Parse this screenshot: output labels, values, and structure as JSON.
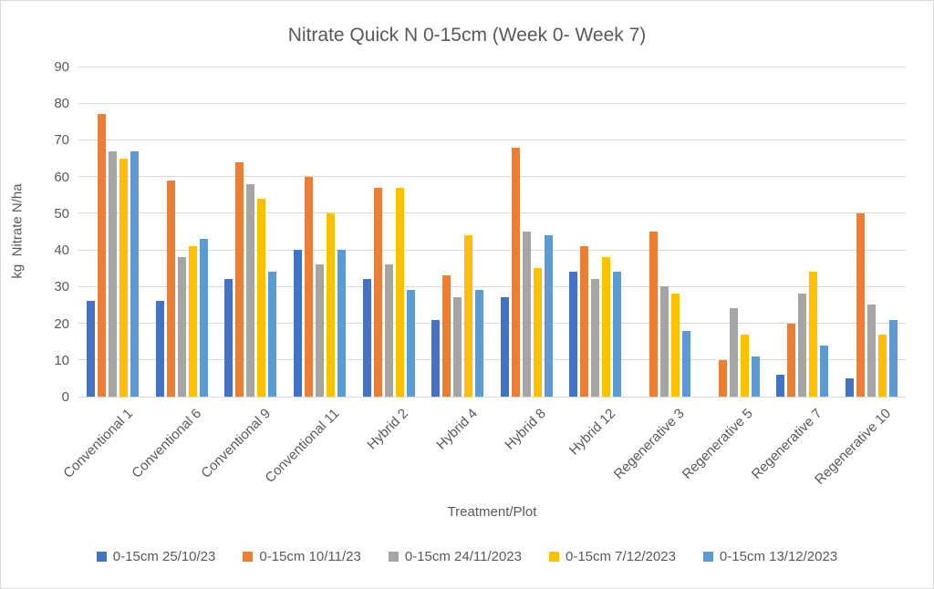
{
  "chart_data": {
    "type": "bar",
    "title": "Nitrate Quick N 0-15cm (Week 0- Week 7)",
    "xlabel": "Treatment/Plot",
    "ylabel": "kg  Nitrate N/ha",
    "ylim": [
      0,
      90
    ],
    "yticks": [
      0,
      10,
      20,
      30,
      40,
      50,
      60,
      70,
      80,
      90
    ],
    "grid": "horizontal",
    "legend_position": "bottom",
    "categories": [
      "Conventional 1",
      "Conventional 6",
      "Conventional 9",
      "Conventional 11",
      "Hybrid 2",
      "Hybrid 4",
      "Hybrid 8",
      "Hybrid 12",
      "Regenerative 3",
      "Regenerative 5",
      "Regenerative 7",
      "Regenerative 10"
    ],
    "series": [
      {
        "name": "0-15cm 25/10/23",
        "color": "#4472C4",
        "values": [
          26,
          26,
          32,
          40,
          32,
          21,
          27,
          34,
          null,
          null,
          6,
          5
        ]
      },
      {
        "name": "0-15cm 10/11/23",
        "color": "#ED7D31",
        "values": [
          77,
          59,
          64,
          60,
          57,
          33,
          68,
          41,
          45,
          10,
          20,
          50
        ]
      },
      {
        "name": "0-15cm 24/11/2023",
        "color": "#A5A5A5",
        "values": [
          67,
          38,
          58,
          36,
          36,
          27,
          45,
          32,
          30,
          24,
          28,
          25
        ]
      },
      {
        "name": "0-15cm 7/12/2023",
        "color": "#FFC000",
        "values": [
          65,
          41,
          54,
          50,
          57,
          44,
          35,
          38,
          28,
          17,
          34,
          17
        ]
      },
      {
        "name": "0-15cm 13/12/2023",
        "color": "#5B9BD5",
        "values": [
          67,
          43,
          34,
          40,
          29,
          29,
          44,
          34,
          18,
          11,
          14,
          21
        ]
      }
    ],
    "colors": {
      "text": "#595959",
      "gridline": "#D9D9D9",
      "background": "#FFFFFF"
    }
  }
}
